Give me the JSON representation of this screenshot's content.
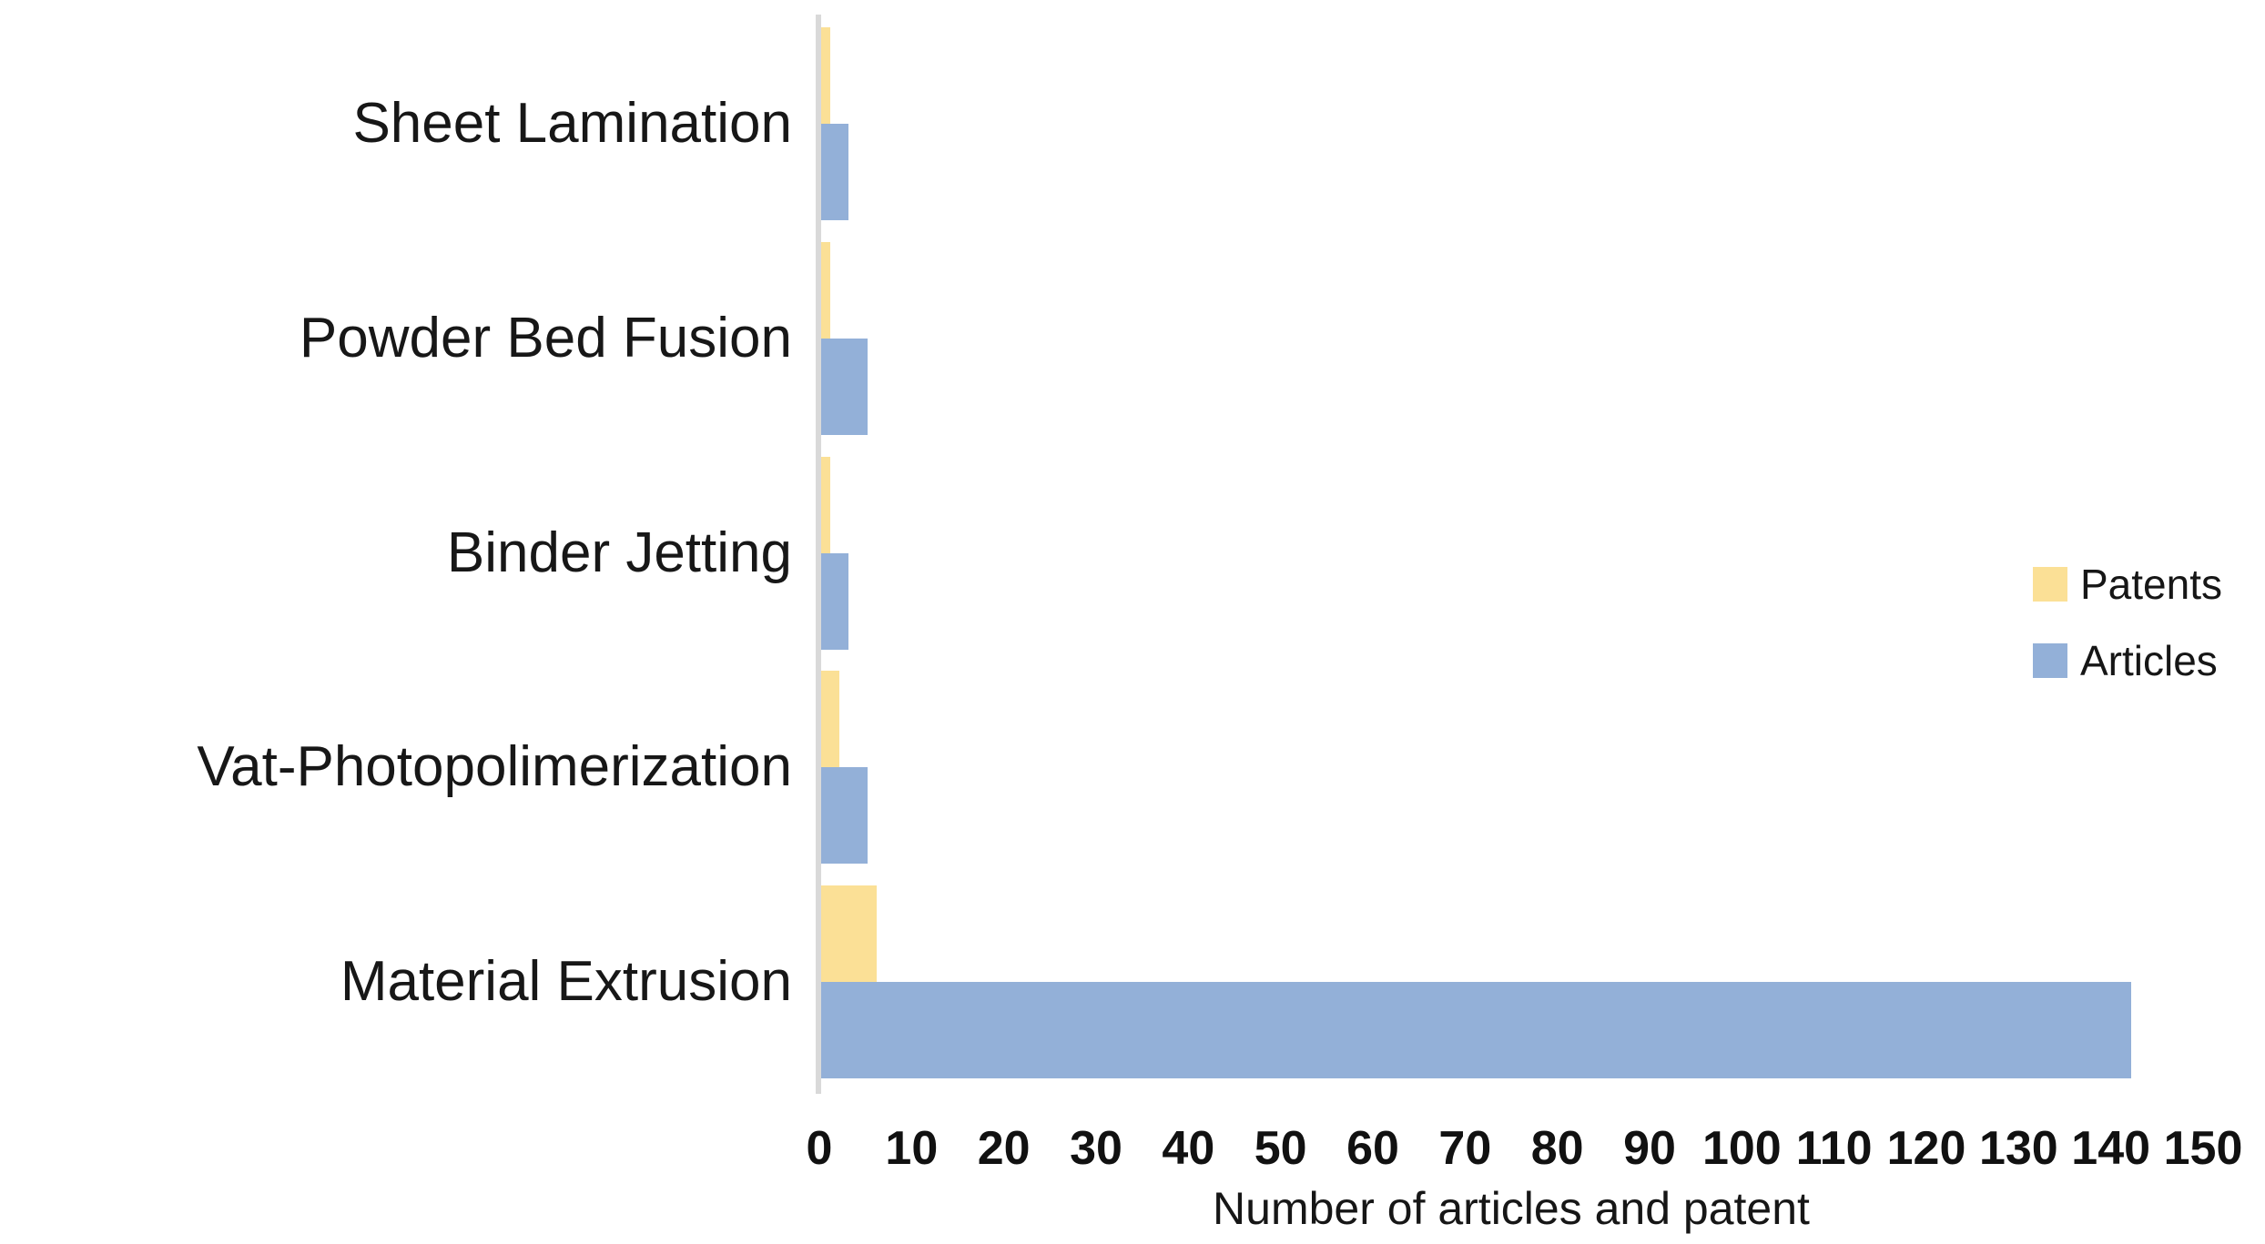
{
  "chart_data": {
    "type": "bar",
    "orientation": "horizontal",
    "title": "",
    "xlabel": "Number of articles and patent",
    "ylabel": "",
    "xlim": [
      0,
      150
    ],
    "xticks": [
      0,
      10,
      20,
      30,
      40,
      50,
      60,
      70,
      80,
      90,
      100,
      110,
      120,
      130,
      140,
      150
    ],
    "grid": false,
    "legend_position": "right",
    "axis_line_color": "#d9d9d9",
    "background_color": "#ffffff",
    "text_color": "#161616",
    "categories": [
      "Sheet Lamination",
      "Powder Bed Fusion",
      "Binder Jetting",
      "Vat-Photopolimerization",
      "Material Extrusion"
    ],
    "series": [
      {
        "name": "Patents",
        "color": "#fbe096",
        "values": [
          1,
          1,
          1,
          2,
          6
        ]
      },
      {
        "name": "Articles",
        "color": "#93b0d8",
        "values": [
          3,
          5,
          3,
          5,
          142
        ]
      }
    ]
  }
}
